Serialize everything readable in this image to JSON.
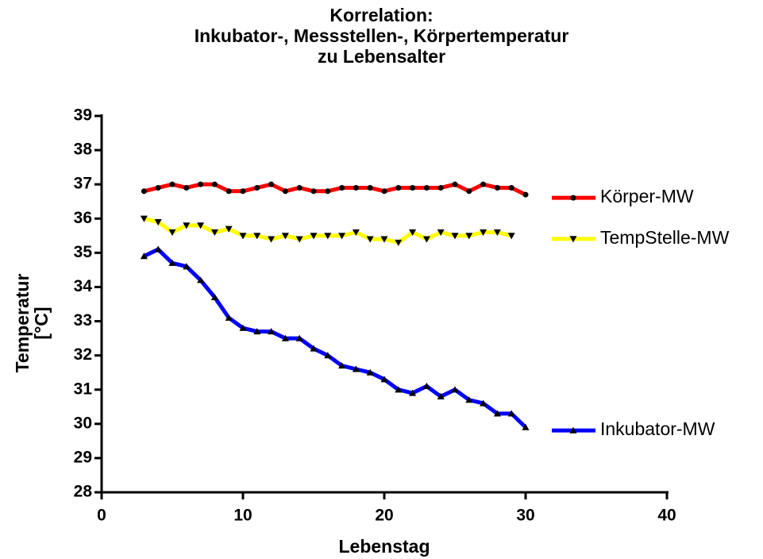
{
  "chart_data": {
    "type": "line",
    "title": "Korrelation:\nInkubator-, Messstellen-, Körpertemperatur\nzu Lebensalter",
    "xlabel": "Lebenstag",
    "ylabel": "Temperatur\n[°C]",
    "xlim": [
      0,
      40
    ],
    "xticks": [
      0,
      10,
      20,
      30,
      40
    ],
    "ylim": [
      28,
      39
    ],
    "yticks": [
      28,
      29,
      30,
      31,
      32,
      33,
      34,
      35,
      36,
      37,
      38,
      39
    ],
    "legend": "right",
    "series": [
      {
        "name": "Körper-MW",
        "color": "#ff0000",
        "marker": "circle",
        "x": [
          3,
          4,
          5,
          6,
          7,
          8,
          9,
          10,
          11,
          12,
          13,
          14,
          15,
          16,
          17,
          18,
          19,
          20,
          21,
          22,
          23,
          24,
          25,
          26,
          27,
          28,
          29,
          30
        ],
        "values": [
          36.8,
          36.9,
          37.0,
          36.9,
          37.0,
          37.0,
          36.8,
          36.8,
          36.9,
          37.0,
          36.8,
          36.9,
          36.8,
          36.8,
          36.9,
          36.9,
          36.9,
          36.8,
          36.9,
          36.9,
          36.9,
          36.9,
          37.0,
          36.8,
          37.0,
          36.9,
          36.9,
          36.7
        ]
      },
      {
        "name": "TempStelle-MW",
        "color": "#ffff00",
        "marker": "triangle-down",
        "x": [
          3,
          4,
          5,
          6,
          7,
          8,
          9,
          10,
          11,
          12,
          13,
          14,
          15,
          16,
          17,
          18,
          19,
          20,
          21,
          22,
          23,
          24,
          25,
          26,
          27,
          28,
          29
        ],
        "values": [
          36.0,
          35.9,
          35.6,
          35.8,
          35.8,
          35.6,
          35.7,
          35.5,
          35.5,
          35.4,
          35.5,
          35.4,
          35.5,
          35.5,
          35.5,
          35.6,
          35.4,
          35.4,
          35.3,
          35.6,
          35.4,
          35.6,
          35.5,
          35.5,
          35.6,
          35.6,
          35.5
        ]
      },
      {
        "name": "Inkubator-MW",
        "color": "#0000ff",
        "marker": "triangle-up",
        "x": [
          3,
          4,
          5,
          6,
          7,
          8,
          9,
          10,
          11,
          12,
          13,
          14,
          15,
          16,
          17,
          18,
          19,
          20,
          21,
          22,
          23,
          24,
          25,
          26,
          27,
          28,
          29,
          30
        ],
        "values": [
          34.9,
          35.1,
          34.7,
          34.6,
          34.2,
          33.7,
          33.1,
          32.8,
          32.7,
          32.7,
          32.5,
          32.5,
          32.2,
          32.0,
          31.7,
          31.6,
          31.5,
          31.3,
          31.0,
          30.9,
          31.1,
          30.8,
          31.0,
          30.7,
          30.6,
          30.3,
          30.3,
          29.9
        ]
      }
    ]
  }
}
